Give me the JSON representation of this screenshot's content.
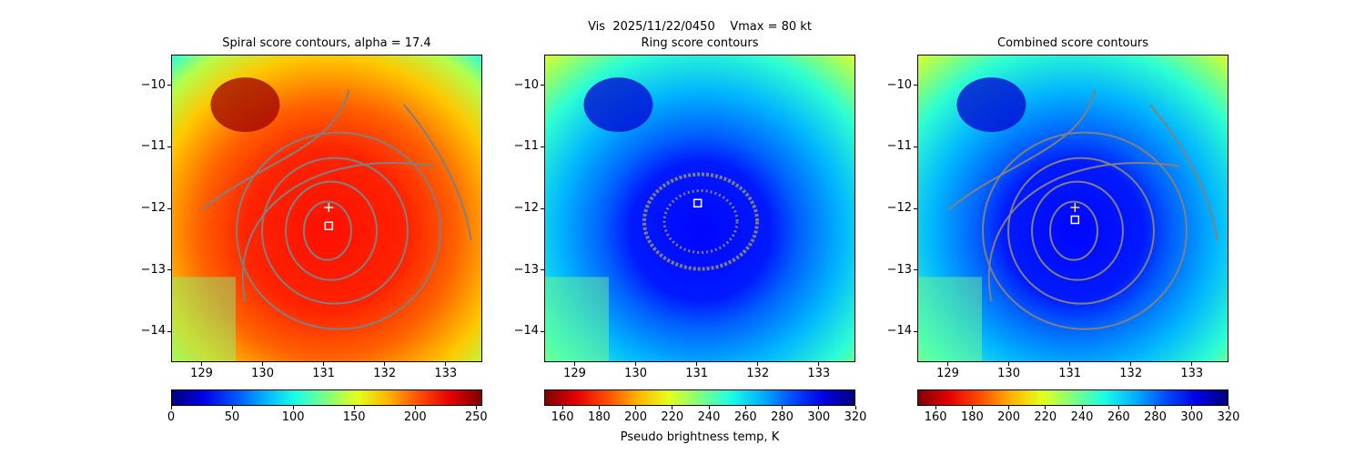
{
  "figure": {
    "suptitle_line": "Vis  2025/11/22/0450    Vmax = 80 kt",
    "colorbar_label": "Pseudo brightness temp, K"
  },
  "colors": {
    "contour": "#808080",
    "marker": "#ffffff",
    "marker_combined_plus": "#ffe04a"
  },
  "chart_data": [
    {
      "type": "heatmap",
      "title": "Spiral score contours, alpha = 17.4",
      "x_ticks": [
        "129",
        "130",
        "131",
        "132",
        "133"
      ],
      "x_tick_values": [
        129,
        130,
        131,
        132,
        133
      ],
      "y_ticks": [
        "−10",
        "−11",
        "−12",
        "−13",
        "−14"
      ],
      "y_tick_values": [
        -10,
        -11,
        -12,
        -13,
        -14
      ],
      "xlim": [
        128.5,
        133.6
      ],
      "ylim": [
        -14.5,
        -9.5
      ],
      "colormap": "jet",
      "colorbar": {
        "range": [
          0,
          255
        ],
        "reversed": false,
        "ticks": [
          "0",
          "50",
          "100",
          "150",
          "200",
          "250"
        ],
        "tick_values": [
          0,
          50,
          100,
          150,
          200,
          250
        ]
      },
      "markers": [
        {
          "symbol": "plus",
          "lon": 131.07,
          "lat": -11.97
        },
        {
          "symbol": "square",
          "lon": 131.07,
          "lat": -12.27
        }
      ],
      "contours": "spiral"
    },
    {
      "type": "heatmap",
      "title": "Ring score contours",
      "x_ticks": [
        "129",
        "130",
        "131",
        "132",
        "133"
      ],
      "x_tick_values": [
        129,
        130,
        131,
        132,
        133
      ],
      "y_ticks": [
        "−10",
        "−11",
        "−12",
        "−13",
        "−14"
      ],
      "y_tick_values": [
        -10,
        -11,
        -12,
        -13,
        -14
      ],
      "xlim": [
        128.5,
        133.6
      ],
      "ylim": [
        -14.5,
        -9.5
      ],
      "colormap": "jet_r",
      "colorbar": {
        "range": [
          150,
          320
        ],
        "reversed": true,
        "ticks": [
          "160",
          "180",
          "200",
          "220",
          "240",
          "260",
          "280",
          "300",
          "320"
        ],
        "tick_values": [
          160,
          180,
          200,
          220,
          240,
          260,
          280,
          300,
          320
        ]
      },
      "markers": [
        {
          "symbol": "square",
          "lon": 131.0,
          "lat": -11.9
        }
      ],
      "contours": "ring"
    },
    {
      "type": "heatmap",
      "title": "Combined score contours",
      "x_ticks": [
        "129",
        "130",
        "131",
        "132",
        "133"
      ],
      "x_tick_values": [
        129,
        130,
        131,
        132,
        133
      ],
      "y_ticks": [
        "−10",
        "−11",
        "−12",
        "−13",
        "−14"
      ],
      "y_tick_values": [
        -10,
        -11,
        -12,
        -13,
        -14
      ],
      "xlim": [
        128.5,
        133.6
      ],
      "ylim": [
        -14.5,
        -9.5
      ],
      "colormap": "jet_r",
      "colorbar": {
        "range": [
          150,
          320
        ],
        "reversed": true,
        "ticks": [
          "160",
          "180",
          "200",
          "220",
          "240",
          "260",
          "280",
          "300",
          "320"
        ],
        "tick_values": [
          160,
          180,
          200,
          220,
          240,
          260,
          280,
          300,
          320
        ]
      },
      "markers": [
        {
          "symbol": "plus",
          "lon": 131.07,
          "lat": -11.97
        },
        {
          "symbol": "square",
          "lon": 131.07,
          "lat": -12.17
        }
      ],
      "contours": "spiral"
    }
  ]
}
